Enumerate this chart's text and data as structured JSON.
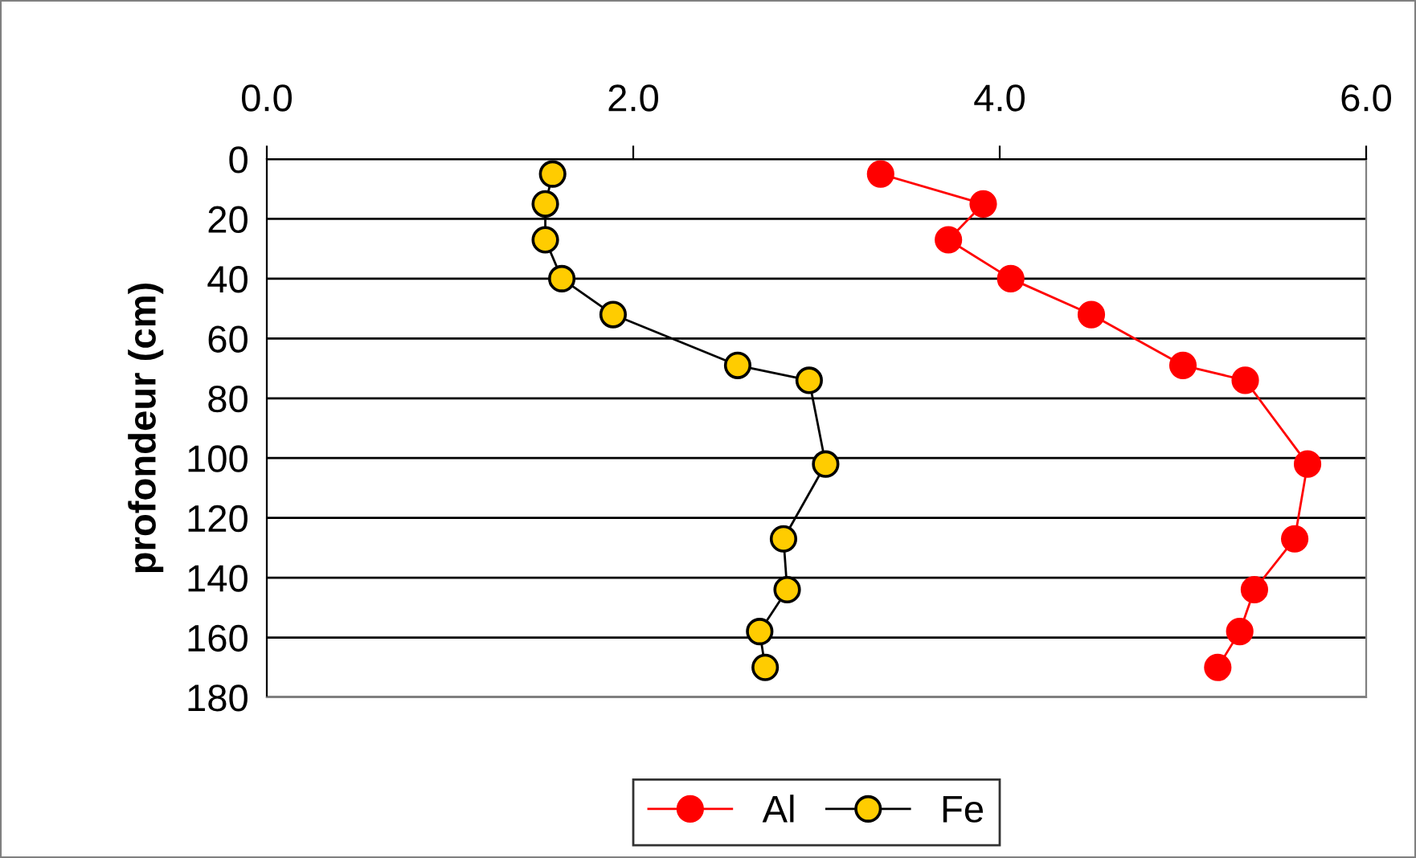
{
  "chart_data": {
    "type": "line",
    "ylabel": "profondeur (cm)",
    "xlim": [
      0,
      6
    ],
    "xticks": [
      {
        "value": 0,
        "label": "0.0"
      },
      {
        "value": 2,
        "label": "2.0"
      },
      {
        "value": 4,
        "label": "4.0"
      },
      {
        "value": 6,
        "label": "6.0"
      }
    ],
    "ylim": [
      180,
      0
    ],
    "yticks": [
      0,
      20,
      40,
      60,
      80,
      100,
      120,
      140,
      160,
      180
    ],
    "grid": "y",
    "legend": "bottom",
    "marker": "circle",
    "line_style": "solid",
    "series": [
      {
        "name": "Al",
        "color": "#ff0000",
        "x": [
          3.35,
          3.91,
          3.72,
          4.06,
          4.5,
          5.0,
          5.34,
          5.68,
          5.61,
          5.39,
          5.31,
          5.19
        ],
        "values": [
          5,
          15,
          27,
          40,
          52,
          69,
          74,
          102,
          127,
          144,
          158,
          170
        ]
      },
      {
        "name": "Fe",
        "color": "#ffcc00",
        "x": [
          1.56,
          1.52,
          1.52,
          1.61,
          1.89,
          2.57,
          2.96,
          3.05,
          2.82,
          2.84,
          2.69,
          2.72
        ],
        "values": [
          5,
          15,
          27,
          40,
          52,
          69,
          74,
          102,
          127,
          144,
          158,
          170
        ]
      }
    ]
  }
}
